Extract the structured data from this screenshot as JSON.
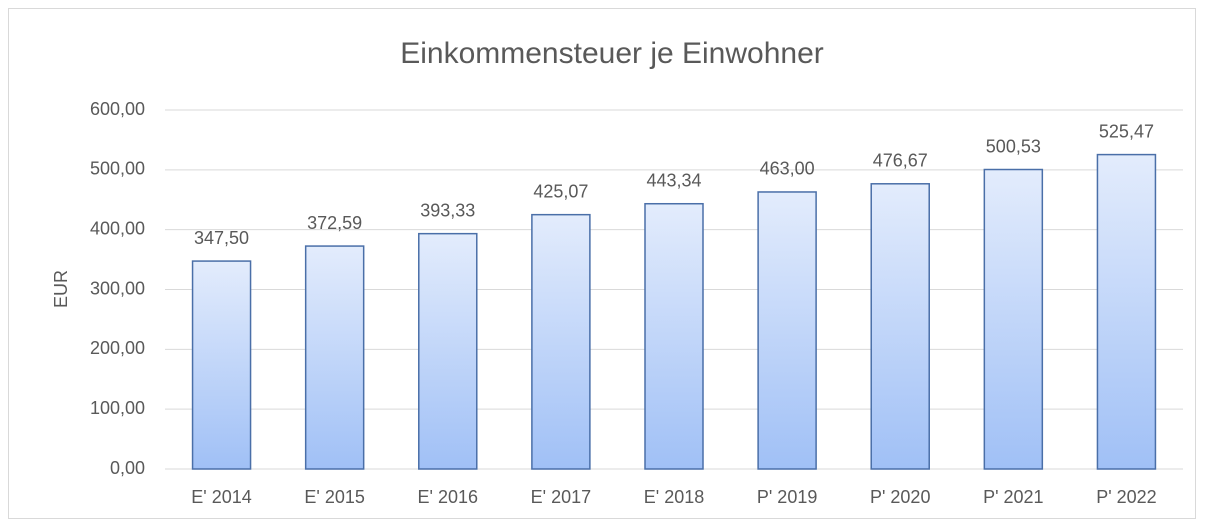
{
  "chart_data": {
    "type": "bar",
    "title": "Einkommensteuer je Einwohner",
    "y_label": "EUR",
    "categories": [
      "E' 2014",
      "E' 2015",
      "E' 2016",
      "E' 2017",
      "E' 2018",
      "P' 2019",
      "P' 2020",
      "P' 2021",
      "P' 2022"
    ],
    "values": [
      347.5,
      372.59,
      393.33,
      425.07,
      443.34,
      463.0,
      476.67,
      500.53,
      525.47
    ],
    "value_labels": [
      "347,50",
      "372,59",
      "393,33",
      "425,07",
      "443,34",
      "463,00",
      "476,67",
      "500,53",
      "525,47"
    ],
    "color": "#a0c0f6",
    "ylim": [
      0,
      600
    ],
    "yticks": [
      {
        "value": 0,
        "label": "0,00"
      },
      {
        "value": 100,
        "label": "100,00"
      },
      {
        "value": 200,
        "label": "200,00"
      },
      {
        "value": 300,
        "label": "300,00"
      },
      {
        "value": 400,
        "label": "400,00"
      },
      {
        "value": 500,
        "label": "500,00"
      },
      {
        "value": 600,
        "label": "600,00"
      }
    ],
    "grid": true
  }
}
